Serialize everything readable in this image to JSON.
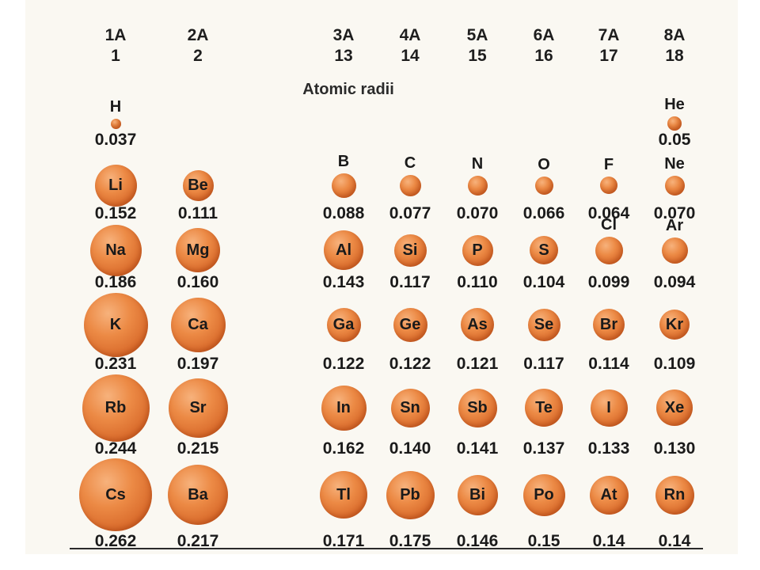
{
  "title": "Atomic radii",
  "colors": {
    "sphere": "#e07a36",
    "text": "#1a1a1a"
  },
  "groups": [
    {
      "a": "1A",
      "n": "1"
    },
    {
      "a": "2A",
      "n": "2"
    },
    {
      "a": "3A",
      "n": "13"
    },
    {
      "a": "4A",
      "n": "14"
    },
    {
      "a": "5A",
      "n": "15"
    },
    {
      "a": "6A",
      "n": "16"
    },
    {
      "a": "7A",
      "n": "17"
    },
    {
      "a": "8A",
      "n": "18"
    }
  ],
  "elements": [
    {
      "symbol": "H",
      "radius": "0.037",
      "group": 0,
      "period": 0
    },
    {
      "symbol": "He",
      "radius": "0.05",
      "group": 7,
      "period": 0
    },
    {
      "symbol": "Li",
      "radius": "0.152",
      "group": 0,
      "period": 1
    },
    {
      "symbol": "Be",
      "radius": "0.111",
      "group": 1,
      "period": 1
    },
    {
      "symbol": "B",
      "radius": "0.088",
      "group": 2,
      "period": 1
    },
    {
      "symbol": "C",
      "radius": "0.077",
      "group": 3,
      "period": 1
    },
    {
      "symbol": "N",
      "radius": "0.070",
      "group": 4,
      "period": 1
    },
    {
      "symbol": "O",
      "radius": "0.066",
      "group": 5,
      "period": 1
    },
    {
      "symbol": "F",
      "radius": "0.064",
      "group": 6,
      "period": 1
    },
    {
      "symbol": "Ne",
      "radius": "0.070",
      "group": 7,
      "period": 1
    },
    {
      "symbol": "Na",
      "radius": "0.186",
      "group": 0,
      "period": 2
    },
    {
      "symbol": "Mg",
      "radius": "0.160",
      "group": 1,
      "period": 2
    },
    {
      "symbol": "Al",
      "radius": "0.143",
      "group": 2,
      "period": 2
    },
    {
      "symbol": "Si",
      "radius": "0.117",
      "group": 3,
      "period": 2
    },
    {
      "symbol": "P",
      "radius": "0.110",
      "group": 4,
      "period": 2
    },
    {
      "symbol": "S",
      "radius": "0.104",
      "group": 5,
      "period": 2
    },
    {
      "symbol": "Cl",
      "radius": "0.099",
      "group": 6,
      "period": 2
    },
    {
      "symbol": "Ar",
      "radius": "0.094",
      "group": 7,
      "period": 2
    },
    {
      "symbol": "K",
      "radius": "0.231",
      "group": 0,
      "period": 3
    },
    {
      "symbol": "Ca",
      "radius": "0.197",
      "group": 1,
      "period": 3
    },
    {
      "symbol": "Ga",
      "radius": "0.122",
      "group": 2,
      "period": 3
    },
    {
      "symbol": "Ge",
      "radius": "0.122",
      "group": 3,
      "period": 3
    },
    {
      "symbol": "As",
      "radius": "0.121",
      "group": 4,
      "period": 3
    },
    {
      "symbol": "Se",
      "radius": "0.117",
      "group": 5,
      "period": 3
    },
    {
      "symbol": "Br",
      "radius": "0.114",
      "group": 6,
      "period": 3
    },
    {
      "symbol": "Kr",
      "radius": "0.109",
      "group": 7,
      "period": 3
    },
    {
      "symbol": "Rb",
      "radius": "0.244",
      "group": 0,
      "period": 4
    },
    {
      "symbol": "Sr",
      "radius": "0.215",
      "group": 1,
      "period": 4
    },
    {
      "symbol": "In",
      "radius": "0.162",
      "group": 2,
      "period": 4
    },
    {
      "symbol": "Sn",
      "radius": "0.140",
      "group": 3,
      "period": 4
    },
    {
      "symbol": "Sb",
      "radius": "0.141",
      "group": 4,
      "period": 4
    },
    {
      "symbol": "Te",
      "radius": "0.137",
      "group": 5,
      "period": 4
    },
    {
      "symbol": "I",
      "radius": "0.133",
      "group": 6,
      "period": 4
    },
    {
      "symbol": "Xe",
      "radius": "0.130",
      "group": 7,
      "period": 4
    },
    {
      "symbol": "Cs",
      "radius": "0.262",
      "group": 0,
      "period": 5
    },
    {
      "symbol": "Ba",
      "radius": "0.217",
      "group": 1,
      "period": 5
    },
    {
      "symbol": "Tl",
      "radius": "0.171",
      "group": 2,
      "period": 5
    },
    {
      "symbol": "Pb",
      "radius": "0.175",
      "group": 3,
      "period": 5
    },
    {
      "symbol": "Bi",
      "radius": "0.146",
      "group": 4,
      "period": 5
    },
    {
      "symbol": "Po",
      "radius": "0.15",
      "group": 5,
      "period": 5
    },
    {
      "symbol": "At",
      "radius": "0.14",
      "group": 6,
      "period": 5
    },
    {
      "symbol": "Rn",
      "radius": "0.14",
      "group": 7,
      "period": 5
    }
  ]
}
